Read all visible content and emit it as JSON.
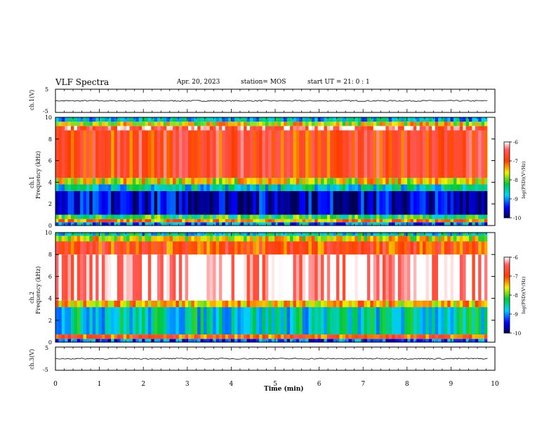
{
  "header": {
    "title": "VLF Spectra",
    "date": "Apr. 20, 2023",
    "station": "station= MOS",
    "start": "start  UT  =   21: 0  : 1"
  },
  "chart_data": [
    {
      "type": "line",
      "name": "ch1-waveform",
      "ylabel": "ch.1(V)",
      "ylim": [
        -5,
        5
      ],
      "yticks": [
        "5",
        "-5"
      ],
      "baseline": 0
    },
    {
      "type": "heatmap",
      "name": "ch1-spectrogram",
      "ylabel_line1": "ch.1",
      "ylabel_line2": "Frequency (kHz)",
      "ylim": [
        0,
        10
      ],
      "yticks": [
        "0",
        "2",
        "4",
        "6",
        "8",
        "10"
      ],
      "colorbar": {
        "label": "log(PSD)(V²/Hz)",
        "ticks": [
          "-6",
          "-7",
          "-8",
          "-9",
          "-10"
        ],
        "range": [
          -10,
          -6
        ]
      },
      "bands_khz_level": [
        {
          "from": 0.0,
          "to": 0.3,
          "level": -9.0
        },
        {
          "from": 0.3,
          "to": 0.6,
          "level": -7.3
        },
        {
          "from": 0.6,
          "to": 1.0,
          "level": -8.2
        },
        {
          "from": 1.0,
          "to": 3.2,
          "level": -9.6
        },
        {
          "from": 3.2,
          "to": 3.8,
          "level": -8.6
        },
        {
          "from": 3.8,
          "to": 4.4,
          "level": -7.6
        },
        {
          "from": 4.4,
          "to": 8.8,
          "level": -6.8
        },
        {
          "from": 8.8,
          "to": 9.2,
          "level": -6.4
        },
        {
          "from": 9.2,
          "to": 9.6,
          "level": -7.6
        },
        {
          "from": 9.6,
          "to": 10.0,
          "level": -8.8
        }
      ]
    },
    {
      "type": "heatmap",
      "name": "ch2-spectrogram",
      "ylabel_line1": "ch.2",
      "ylabel_line2": "Frequency (kHz)",
      "ylim": [
        0,
        10
      ],
      "yticks": [
        "0",
        "2",
        "4",
        "6",
        "8",
        "10"
      ],
      "colorbar": {
        "label": "log(PSD)(V²/Hz)",
        "ticks": [
          "-6",
          "-7",
          "-8",
          "-9",
          "-10"
        ],
        "range": [
          -10,
          -6
        ]
      },
      "bands_khz_level": [
        {
          "from": 0.0,
          "to": 0.3,
          "level": -9.2
        },
        {
          "from": 0.3,
          "to": 0.7,
          "level": -7.0
        },
        {
          "from": 0.7,
          "to": 3.2,
          "level": -8.6
        },
        {
          "from": 3.2,
          "to": 3.8,
          "level": -7.4
        },
        {
          "from": 3.8,
          "to": 8.0,
          "level": -6.2
        },
        {
          "from": 8.0,
          "to": 9.2,
          "level": -6.9
        },
        {
          "from": 9.2,
          "to": 9.7,
          "level": -7.6
        },
        {
          "from": 9.7,
          "to": 10.0,
          "level": -8.6
        }
      ]
    },
    {
      "type": "line",
      "name": "ch3-waveform",
      "ylabel": "ch.3(V)",
      "ylim": [
        -5,
        5
      ],
      "yticks": [
        "5",
        "-5"
      ],
      "baseline": 0
    }
  ],
  "xaxis": {
    "label": "Time  (min)",
    "ticks": [
      "0",
      "1",
      "2",
      "3",
      "4",
      "5",
      "6",
      "7",
      "8",
      "9",
      "10"
    ],
    "data_end": 9.83
  }
}
